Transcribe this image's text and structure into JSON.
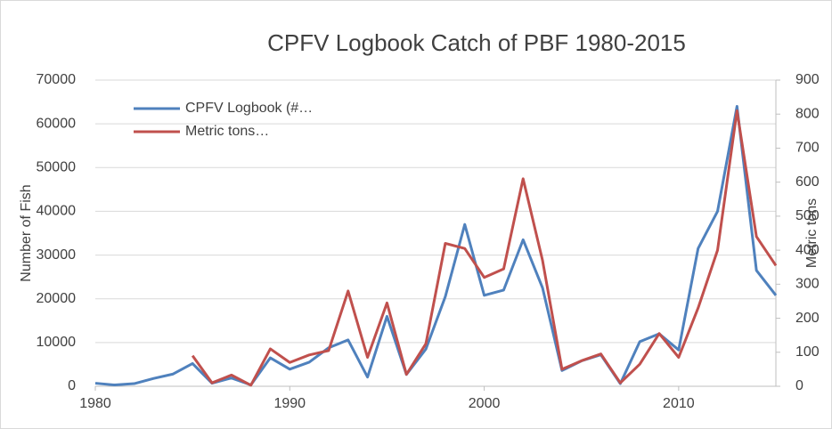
{
  "chart_data": {
    "type": "line",
    "title": "CPFV Logbook Catch of PBF 1980-2015",
    "y_label": "Number of Fish",
    "y2_label": "Metric tons",
    "x": [
      1980,
      1981,
      1982,
      1983,
      1984,
      1985,
      1986,
      1987,
      1988,
      1989,
      1990,
      1991,
      1992,
      1993,
      1994,
      1995,
      1996,
      1997,
      1998,
      1999,
      2000,
      2001,
      2002,
      2003,
      2004,
      2005,
      2006,
      2007,
      2008,
      2009,
      2010,
      2011,
      2012,
      2013,
      2014,
      2015
    ],
    "xlim": [
      1980,
      2015
    ],
    "xticks": [
      1980,
      1990,
      2000,
      2010
    ],
    "ylim": [
      0,
      70000
    ],
    "yticks": [
      0,
      10000,
      20000,
      30000,
      40000,
      50000,
      60000,
      70000
    ],
    "y2lim": [
      0,
      900
    ],
    "y2ticks": [
      0,
      100,
      200,
      300,
      400,
      500,
      600,
      700,
      800,
      900
    ],
    "grid": true,
    "legend": "top-left",
    "series": [
      {
        "name": "CPFV Logbook (#…",
        "color": "#4f81bd",
        "values": [
          700,
          300,
          600,
          1800,
          2800,
          5200,
          700,
          1900,
          300,
          6500,
          3900,
          5500,
          8800,
          10600,
          2100,
          16000,
          2700,
          8500,
          20500,
          37000,
          20800,
          22000,
          33500,
          22500,
          3600,
          5800,
          7200,
          600,
          10200,
          12000,
          8300,
          31500,
          40000,
          64000,
          26500,
          20800
        ]
      },
      {
        "name": "Metric tons…",
        "color": "#c0504d",
        "axis": "y2",
        "values": [
          null,
          null,
          null,
          null,
          null,
          90,
          10,
          33,
          3,
          110,
          70,
          92,
          105,
          280,
          85,
          245,
          35,
          125,
          420,
          405,
          320,
          345,
          610,
          370,
          50,
          75,
          95,
          10,
          65,
          155,
          85,
          230,
          400,
          810,
          440,
          355
        ]
      }
    ]
  }
}
